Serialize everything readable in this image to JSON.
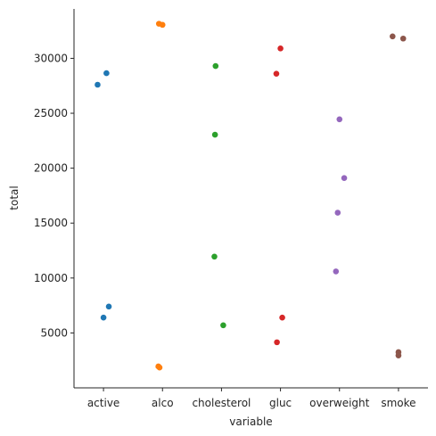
{
  "chart_data": {
    "type": "scatter",
    "xlabel": "variable",
    "ylabel": "total",
    "categories": [
      "active",
      "alco",
      "cholesterol",
      "gluc",
      "overweight",
      "smoke"
    ],
    "ylim": [
      0,
      34500
    ],
    "yticks": [
      5000,
      10000,
      15000,
      20000,
      25000,
      30000
    ],
    "ytick_labels": [
      "5000",
      "10000",
      "15000",
      "20000",
      "25000",
      "30000"
    ],
    "grid": false,
    "legend": "none",
    "colors": [
      "#1f77b4",
      "#ff7f0e",
      "#2ca02c",
      "#d62728",
      "#9467bd",
      "#8c564b"
    ],
    "series": [
      {
        "category": "active",
        "values": [
          27600,
          28650,
          6400,
          7400
        ]
      },
      {
        "category": "alco",
        "values": [
          33150,
          33050,
          1950,
          1850
        ]
      },
      {
        "category": "cholesterol",
        "values": [
          29300,
          23050,
          11950,
          5700
        ]
      },
      {
        "category": "gluc",
        "values": [
          30900,
          28600,
          6400,
          4150
        ]
      },
      {
        "category": "overweight",
        "values": [
          24450,
          19100,
          15950,
          10600
        ]
      },
      {
        "category": "smoke",
        "values": [
          32000,
          31800,
          3250,
          2950
        ]
      }
    ],
    "jitter": [
      [
        -0.1,
        0.05,
        0.0,
        0.09
      ],
      [
        -0.06,
        0.0,
        -0.07,
        -0.05
      ],
      [
        -0.1,
        -0.11,
        -0.12,
        0.03
      ],
      [
        0.0,
        -0.07,
        0.03,
        -0.06
      ],
      [
        0.0,
        0.08,
        -0.03,
        -0.06
      ],
      [
        -0.1,
        0.08,
        0.0,
        0.0
      ]
    ]
  }
}
